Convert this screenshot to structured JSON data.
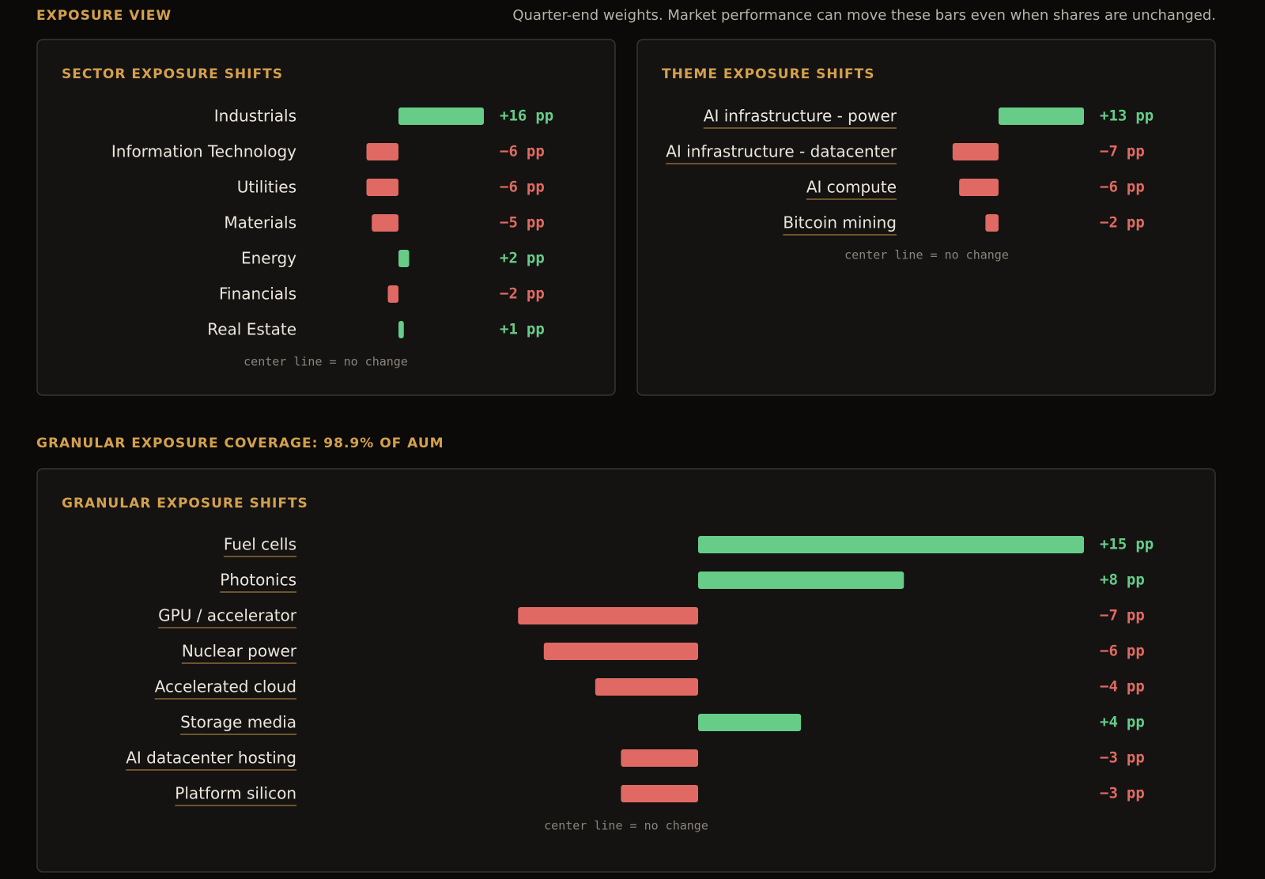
{
  "header": {
    "title": "EXPOSURE VIEW",
    "subtitle": "Quarter-end weights. Market performance can move these bars even when shares are unchanged."
  },
  "section": {
    "title": "GRANULAR EXPOSURE COVERAGE: 98.9% OF AUM"
  },
  "chart_data": [
    {
      "type": "bar",
      "orientation": "horizontal",
      "title": "SECTOR EXPOSURE SHIFTS",
      "categories": [
        "Industrials",
        "Information Technology",
        "Utilities",
        "Materials",
        "Energy",
        "Financials",
        "Real Estate"
      ],
      "values": [
        16,
        -6,
        -6,
        -5,
        2,
        -2,
        1
      ],
      "value_labels": [
        "+16",
        "−6",
        "−6",
        "−5",
        "+2",
        "−2",
        "+1"
      ],
      "unit": "pp",
      "positive_color": "#66cc88",
      "negative_color": "#e06a63",
      "note": "center line = no change"
    },
    {
      "type": "bar",
      "orientation": "horizontal",
      "title": "THEME EXPOSURE SHIFTS",
      "categories": [
        "AI infrastructure - power",
        "AI infrastructure - datacenter",
        "AI compute",
        "Bitcoin mining"
      ],
      "values": [
        13,
        -7,
        -6,
        -2
      ],
      "value_labels": [
        "+13",
        "−7",
        "−6",
        "−2"
      ],
      "unit": "pp",
      "positive_color": "#66cc88",
      "negative_color": "#e06a63",
      "note": "center line = no change"
    },
    {
      "type": "bar",
      "orientation": "horizontal",
      "title": "GRANULAR EXPOSURE SHIFTS",
      "categories": [
        "Fuel cells",
        "Photonics",
        "GPU / accelerator",
        "Nuclear power",
        "Accelerated cloud",
        "Storage media",
        "AI datacenter hosting",
        "Platform silicon"
      ],
      "values": [
        15,
        8,
        -7,
        -6,
        -4,
        4,
        -3,
        -3
      ],
      "value_labels": [
        "+15",
        "+8",
        "−7",
        "−6",
        "−4",
        "+4",
        "−3",
        "−3"
      ],
      "unit": "pp",
      "positive_color": "#66cc88",
      "negative_color": "#e06a63",
      "note": "center line = no change"
    }
  ]
}
